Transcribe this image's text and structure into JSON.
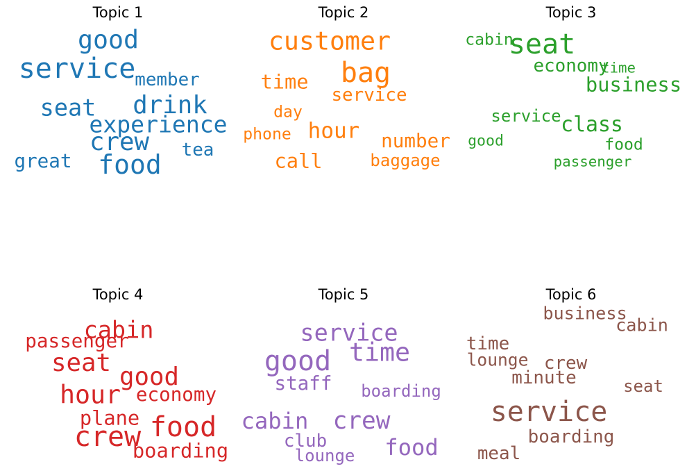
{
  "chart_data": [
    {
      "type": "wordcloud",
      "title": "Topic 1",
      "color": "#1f77b4",
      "words": [
        {
          "text": "good",
          "weight": 0.93
        },
        {
          "text": "service",
          "weight": 1.0
        },
        {
          "text": "member",
          "weight": 0.66
        },
        {
          "text": "drink",
          "weight": 0.91
        },
        {
          "text": "seat",
          "weight": 0.86
        },
        {
          "text": "experience",
          "weight": 0.85
        },
        {
          "text": "crew",
          "weight": 0.91
        },
        {
          "text": "tea",
          "weight": 0.66
        },
        {
          "text": "great",
          "weight": 0.71
        },
        {
          "text": "food",
          "weight": 0.96
        }
      ]
    },
    {
      "type": "wordcloud",
      "title": "Topic 2",
      "color": "#ff7f0e",
      "words": [
        {
          "text": "customer",
          "weight": 0.93
        },
        {
          "text": "bag",
          "weight": 1.0
        },
        {
          "text": "time",
          "weight": 0.74
        },
        {
          "text": "service",
          "weight": 0.66
        },
        {
          "text": "day",
          "weight": 0.57
        },
        {
          "text": "hour",
          "weight": 0.8
        },
        {
          "text": "phone",
          "weight": 0.57
        },
        {
          "text": "number",
          "weight": 0.71
        },
        {
          "text": "call",
          "weight": 0.74
        },
        {
          "text": "baggage",
          "weight": 0.6
        }
      ]
    },
    {
      "type": "wordcloud",
      "title": "Topic 3",
      "color": "#2ca02c",
      "words": [
        {
          "text": "cabin",
          "weight": 0.57
        },
        {
          "text": "seat",
          "weight": 1.0
        },
        {
          "text": "economy",
          "weight": 0.66
        },
        {
          "text": "time",
          "weight": 0.48
        },
        {
          "text": "business",
          "weight": 0.74
        },
        {
          "text": "service",
          "weight": 0.6
        },
        {
          "text": "class",
          "weight": 0.77
        },
        {
          "text": "good",
          "weight": 0.51
        },
        {
          "text": "food",
          "weight": 0.57
        },
        {
          "text": "passenger",
          "weight": 0.48
        }
      ]
    },
    {
      "type": "wordcloud",
      "title": "Topic 4",
      "color": "#d62728",
      "words": [
        {
          "text": "cabin",
          "weight": 0.86
        },
        {
          "text": "passenger",
          "weight": 0.71
        },
        {
          "text": "seat",
          "weight": 0.91
        },
        {
          "text": "good",
          "weight": 0.91
        },
        {
          "text": "hour",
          "weight": 0.93
        },
        {
          "text": "economy",
          "weight": 0.71
        },
        {
          "text": "plane",
          "weight": 0.74
        },
        {
          "text": "food",
          "weight": 1.0
        },
        {
          "text": "crew",
          "weight": 1.0
        },
        {
          "text": "boarding",
          "weight": 0.74
        }
      ]
    },
    {
      "type": "wordcloud",
      "title": "Topic 5",
      "color": "#9467bd",
      "words": [
        {
          "text": "service",
          "weight": 0.86
        },
        {
          "text": "time",
          "weight": 0.93
        },
        {
          "text": "good",
          "weight": 1.0
        },
        {
          "text": "staff",
          "weight": 0.71
        },
        {
          "text": "boarding",
          "weight": 0.6
        },
        {
          "text": "cabin",
          "weight": 0.83
        },
        {
          "text": "crew",
          "weight": 0.88
        },
        {
          "text": "club",
          "weight": 0.66
        },
        {
          "text": "food",
          "weight": 0.83
        },
        {
          "text": "lounge",
          "weight": 0.6
        }
      ]
    },
    {
      "type": "wordcloud",
      "title": "Topic 6",
      "color": "#8c564b",
      "words": [
        {
          "text": "business",
          "weight": 0.64
        },
        {
          "text": "cabin",
          "weight": 0.64
        },
        {
          "text": "time",
          "weight": 0.66
        },
        {
          "text": "lounge",
          "weight": 0.62
        },
        {
          "text": "crew",
          "weight": 0.66
        },
        {
          "text": "minute",
          "weight": 0.66
        },
        {
          "text": "seat",
          "weight": 0.6
        },
        {
          "text": "service",
          "weight": 1.0
        },
        {
          "text": "boarding",
          "weight": 0.66
        },
        {
          "text": "meal",
          "weight": 0.66
        }
      ]
    }
  ]
}
